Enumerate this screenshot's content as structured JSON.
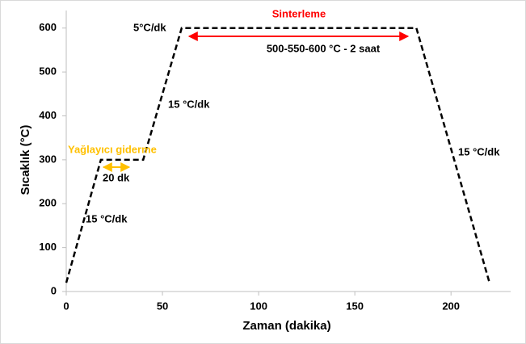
{
  "chart_data": {
    "type": "line",
    "xlabel": "Zaman (dakika)",
    "ylabel": "Sıcaklık (°C)",
    "x": [
      0,
      18,
      40,
      60,
      182,
      220
    ],
    "series": [
      {
        "color": "#000000",
        "values": [
          20,
          300,
          300,
          600,
          600,
          20
        ]
      }
    ],
    "xlim": [
      0,
      231
    ],
    "xticks": [
      0,
      50,
      100,
      150,
      200
    ],
    "ylim": [
      0,
      640
    ],
    "yticks": [
      0,
      100,
      200,
      300,
      400,
      500,
      600
    ],
    "grid": false,
    "annotations": [
      {
        "text": "Sinterleme",
        "color": "#ff0000"
      },
      {
        "text": "5°C/dk",
        "color": "#000000"
      },
      {
        "text": "500-550-600 °C - 2 saat",
        "color": "#000000"
      },
      {
        "text": "15 °C/dk",
        "color": "#000000"
      },
      {
        "text": "Yağlayıcı giderme",
        "color": "#ffc000"
      },
      {
        "text": "20 dk",
        "color": "#000000"
      },
      {
        "text": "15 °C/dk",
        "color": "#000000"
      },
      {
        "text": "15 °C/dk",
        "color": "#000000"
      }
    ]
  }
}
